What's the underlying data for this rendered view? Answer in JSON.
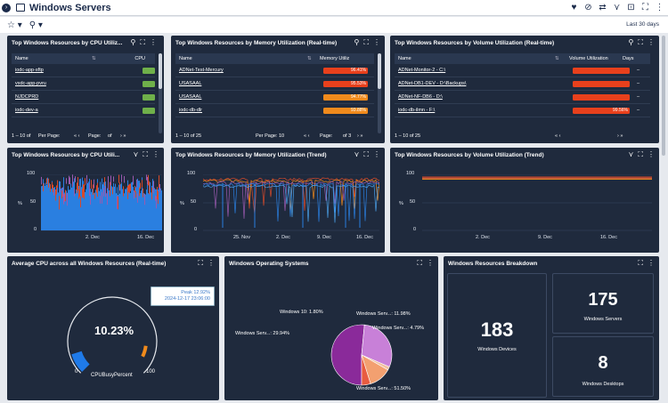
{
  "header": {
    "title": "Windows Servers",
    "date_range": "Last 30 days"
  },
  "cpu_rt": {
    "title": "Top Windows Resources by CPU Utiliz...",
    "col_name": "Name",
    "col_value": "CPU",
    "rows": [
      {
        "name": "iodc-app-sftp",
        "pct": 0.9
      },
      {
        "name": "vxdc-app-pvru",
        "pct": 0.9
      },
      {
        "name": "NJDCPRD",
        "pct": 0.9
      },
      {
        "name": "iodc-dev-a",
        "pct": 0.9
      }
    ],
    "footer_count": "1 – 10 of",
    "per_page": "Per Page:",
    "page": "Page:",
    "of": "of"
  },
  "mem_rt": {
    "title": "Top Windows Resources by Memory Utilization (Real-time)",
    "col_name": "Name",
    "col_value": "Memory Utiliz",
    "rows": [
      {
        "name": "ADNet-Test-Mercury",
        "value": "96.41%",
        "pct": 96.41,
        "color": "#e8401c"
      },
      {
        "name": "USASAAL",
        "value": "95.53%",
        "pct": 95.53,
        "color": "#e8401c"
      },
      {
        "name": "USASAAL",
        "value": "94.77%",
        "pct": 94.77,
        "color": "#f08a1c"
      },
      {
        "name": "iodc-db-dlr",
        "value": "93.88%",
        "pct": 93.88,
        "color": "#f08a1c"
      }
    ],
    "footer_count": "1 – 10 of 25",
    "per_page": "Per Page: 10",
    "page": "Page:",
    "of": "of 3"
  },
  "vol_rt": {
    "title": "Top Windows Resources by Volume Utilization (Real-time)",
    "col_name": "Name",
    "col_value": "Volume Utilization",
    "col_extra": "Days",
    "rows": [
      {
        "name": "ADNet-Monitor-2 - C:\\",
        "pct": 100,
        "color": "#e8401c"
      },
      {
        "name": "ADNet-DB1-DEV - D:\\Backups\\",
        "pct": 100,
        "color": "#e8401c"
      },
      {
        "name": "ADNet-NF-DB6 - D:\\",
        "pct": 100,
        "color": "#e8401c"
      },
      {
        "name": "iodc-db-ilmn - F:\\",
        "value": "99.56%",
        "pct": 99.56,
        "color": "#e8401c"
      }
    ],
    "extra_vals": [
      "–",
      "–",
      "–",
      "–"
    ],
    "footer_count": "1 – 10 of 25"
  },
  "cpu_trend": {
    "title": "Top Windows Resources by CPU Utili...",
    "y_label": "%",
    "y_ticks": [
      "100",
      "50",
      "0"
    ],
    "x_ticks": [
      "2. Dec",
      "16. Dec"
    ]
  },
  "mem_trend": {
    "title": "Top Windows Resources by Memory Utilization (Trend)",
    "y_label": "%",
    "y_ticks": [
      "100",
      "50",
      "0"
    ],
    "x_ticks": [
      "25. Nov",
      "2. Dec",
      "9. Dec",
      "16. Dec"
    ]
  },
  "vol_trend": {
    "title": "Top Windows Resources by Volume Utilization (Trend)",
    "y_label": "%",
    "y_ticks": [
      "100",
      "50",
      "0"
    ],
    "x_ticks": [
      "2. Dec",
      "9. Dec",
      "16. Dec"
    ]
  },
  "gauge": {
    "title": "Average CPU across all Windows Resources (Real-time)",
    "value": "10.23%",
    "value_num": 10.23,
    "min": "0",
    "max": "100",
    "metric": "CPUBusyPercent",
    "tooltip_line1": "Peak 12.92%",
    "tooltip_line2": "2024-12-17 23:06:00"
  },
  "os": {
    "title": "Windows Operating Systems",
    "slices": [
      {
        "label": "Windows Serv...: 51.50%",
        "value": 51.5,
        "color": "#8a2a9a"
      },
      {
        "label": "Windows Serv...: 29.94%",
        "value": 29.94,
        "color": "#c880d8"
      },
      {
        "label": "Windows 10: 1.80%",
        "value": 1.8,
        "color": "#f0c0a0"
      },
      {
        "label": "Windows Serv...: 11.98%",
        "value": 11.98,
        "color": "#f3a070"
      },
      {
        "label": "Windows Serv...: 4.79%",
        "value": 4.79,
        "color": "#e85c40"
      }
    ]
  },
  "breakdown": {
    "title": "Windows Resources Breakdown",
    "devices_count": "183",
    "devices_label": "Windows Devices",
    "servers_count": "175",
    "servers_label": "Windows Servers",
    "desktops_count": "8",
    "desktops_label": "Windows Desktops"
  }
}
